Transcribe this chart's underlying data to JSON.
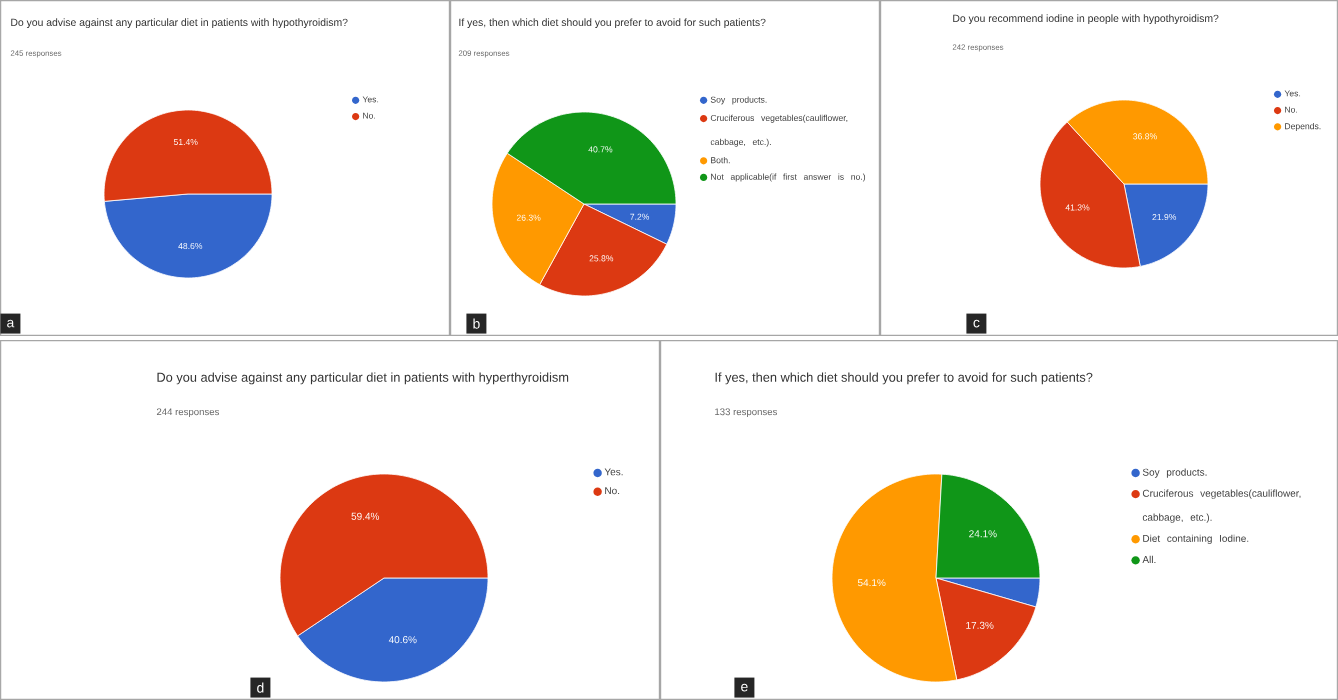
{
  "chart_data": [
    {
      "type": "pie",
      "title": "Do you advise against any particular diet in patients with hypothyroidism?",
      "subtitle": "245 responses",
      "categories": [
        "Yes.",
        "No."
      ],
      "values": [
        48.6,
        51.4
      ],
      "colors": [
        "#3366cc",
        "#dc3912"
      ],
      "value_labels": [
        "48.6%",
        "51.4%"
      ],
      "legend": "right",
      "annotations": [
        "a"
      ]
    },
    {
      "type": "pie",
      "title": "If yes, then which diet should you prefer to avoid for such patients?",
      "subtitle": "209 responses",
      "categories": [
        "Soy products.",
        "Cruciferous vegetables(cauliflower, cabbage, etc.).",
        "Both.",
        "Not applicable(if first answer is no.)"
      ],
      "values": [
        7.2,
        25.8,
        26.3,
        40.7
      ],
      "colors": [
        "#3366cc",
        "#dc3912",
        "#ff9900",
        "#109618"
      ],
      "value_labels": [
        "7.2%",
        "25.8%",
        "26.3%",
        "40.7%"
      ],
      "legend": "right",
      "annotations": [
        "b"
      ]
    },
    {
      "type": "pie",
      "title": "Do you recommend iodine in people with hypothyroidism?",
      "subtitle": "242 responses",
      "categories": [
        "Yes.",
        "No.",
        "Depends."
      ],
      "values": [
        21.9,
        41.3,
        36.8
      ],
      "colors": [
        "#3366cc",
        "#dc3912",
        "#ff9900"
      ],
      "value_labels": [
        "21.9%",
        "41.3%",
        "36.8%"
      ],
      "legend": "right",
      "annotations": [
        "c"
      ]
    },
    {
      "type": "pie",
      "title": "Do you advise against any particular diet in patients with hyperthyroidism",
      "subtitle": "244 responses",
      "categories": [
        "Yes.",
        "No."
      ],
      "values": [
        40.6,
        59.4
      ],
      "colors": [
        "#3366cc",
        "#dc3912"
      ],
      "value_labels": [
        "40.6%",
        "59.4%"
      ],
      "legend": "right",
      "annotations": [
        "d"
      ]
    },
    {
      "type": "pie",
      "title": "If yes, then which diet should you prefer to avoid for such patients?",
      "subtitle": "133 responses",
      "categories": [
        "Soy products.",
        "Cruciferous vegetables(cauliflower, cabbage, etc.).",
        "Diet containing Iodine.",
        "All."
      ],
      "values": [
        4.5,
        17.3,
        54.1,
        24.1
      ],
      "colors": [
        "#3366cc",
        "#dc3912",
        "#ff9900",
        "#109618"
      ],
      "value_labels": [
        null,
        "17.3%",
        "54.1%",
        "24.1%"
      ],
      "legend": "right",
      "annotations": [
        "e"
      ]
    }
  ]
}
